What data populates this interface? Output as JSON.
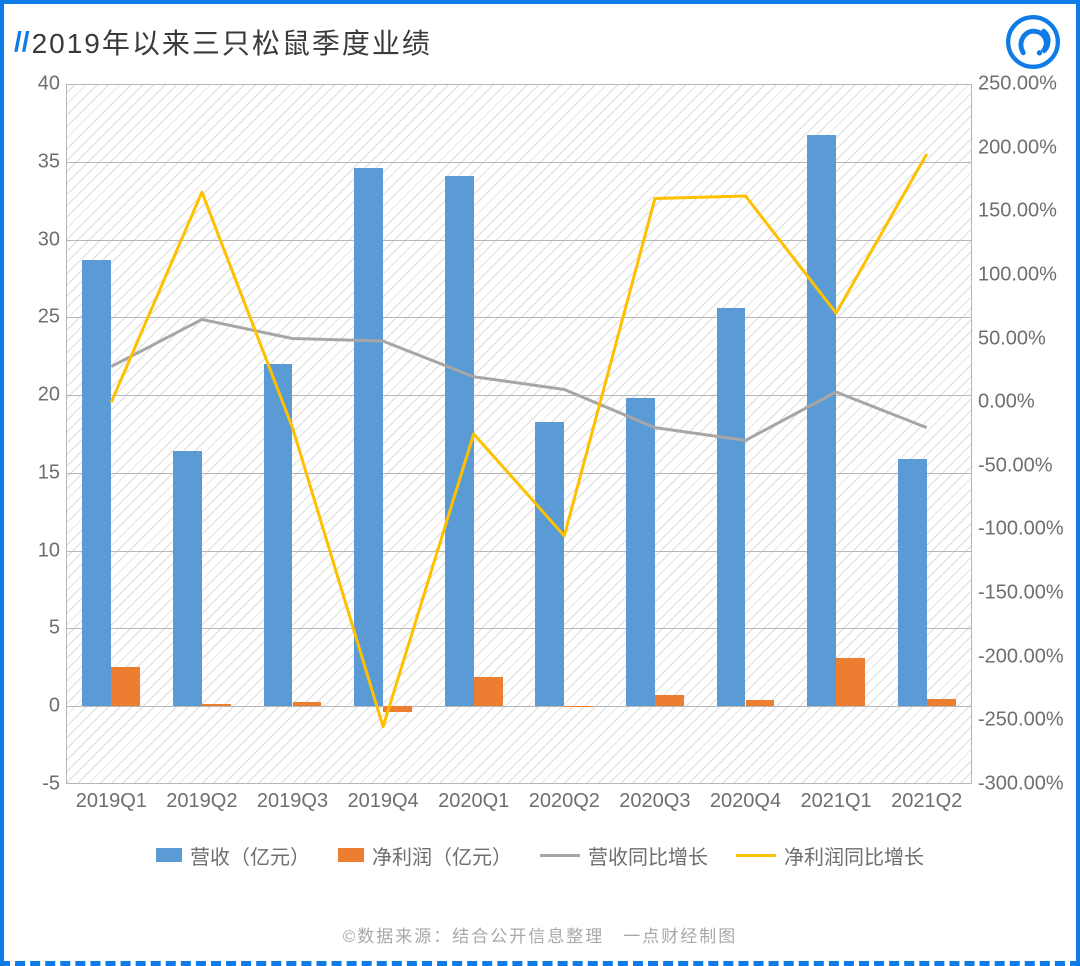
{
  "title_prefix": "//",
  "title": "2019年以来三只松鼠季度业绩",
  "credit": "©数据来源：结合公开信息整理　一点财经制图",
  "chart": {
    "type": "bar+line-dual-axis",
    "categories": [
      "2019Q1",
      "2019Q2",
      "2019Q3",
      "2019Q4",
      "2020Q1",
      "2020Q2",
      "2020Q3",
      "2020Q4",
      "2021Q1",
      "2021Q2"
    ],
    "left_axis": {
      "min": -5,
      "max": 40,
      "step": 5,
      "ticks": [
        -5,
        0,
        5,
        10,
        15,
        20,
        25,
        30,
        35,
        40
      ],
      "tick_labels": [
        "-5",
        "0",
        "5",
        "10",
        "15",
        "20",
        "25",
        "30",
        "35",
        "40"
      ]
    },
    "right_axis": {
      "min": -300,
      "max": 250,
      "step": 50,
      "ticks": [
        -300,
        -250,
        -200,
        -150,
        -100,
        -50,
        0,
        50,
        100,
        150,
        200,
        250
      ],
      "tick_labels": [
        "-300.00%",
        "-250.00%",
        "-200.00%",
        "-150.00%",
        "-100.00%",
        "-50.00%",
        "0.00%",
        "50.00%",
        "100.00%",
        "150.00%",
        "200.00%",
        "250.00%"
      ]
    },
    "series": {
      "revenue": {
        "name": "营收（亿元）",
        "type": "bar",
        "axis": "left",
        "color": "#5b9bd5",
        "bar_width_frac": 0.32,
        "values": [
          28.7,
          16.4,
          22.0,
          34.6,
          34.1,
          18.3,
          19.8,
          25.6,
          36.7,
          15.9
        ]
      },
      "profit": {
        "name": "净利润（亿元）",
        "type": "bar",
        "axis": "left",
        "color": "#ed7d31",
        "bar_width_frac": 0.32,
        "values": [
          2.5,
          0.15,
          0.25,
          -0.4,
          1.9,
          0.02,
          0.7,
          0.4,
          3.1,
          0.45
        ]
      },
      "revenue_yoy": {
        "name": "营收同比增长",
        "type": "line",
        "axis": "right",
        "color": "#a6a6a6",
        "line_width": 3,
        "values": [
          28,
          65,
          50,
          48,
          20,
          10,
          -20,
          -30,
          8,
          -20
        ]
      },
      "profit_yoy": {
        "name": "净利润同比增长",
        "type": "line",
        "axis": "right",
        "color": "#ffc000",
        "line_width": 3,
        "values": [
          0,
          165,
          -20,
          -255,
          -25,
          -105,
          160,
          162,
          70,
          195
        ]
      }
    },
    "legend_order": [
      "revenue",
      "profit",
      "revenue_yoy",
      "profit_yoy"
    ],
    "plot_background": "#ffffff",
    "hatch_color": "#dcdcdc",
    "grid_color": "#b7b7b7",
    "tick_fontsize": 20,
    "tick_color": "#6e6e6e",
    "title_fontsize": 28,
    "title_color": "#3a3a3a",
    "border_color": "#0f7be6",
    "logo_color": "#0f7be6"
  }
}
